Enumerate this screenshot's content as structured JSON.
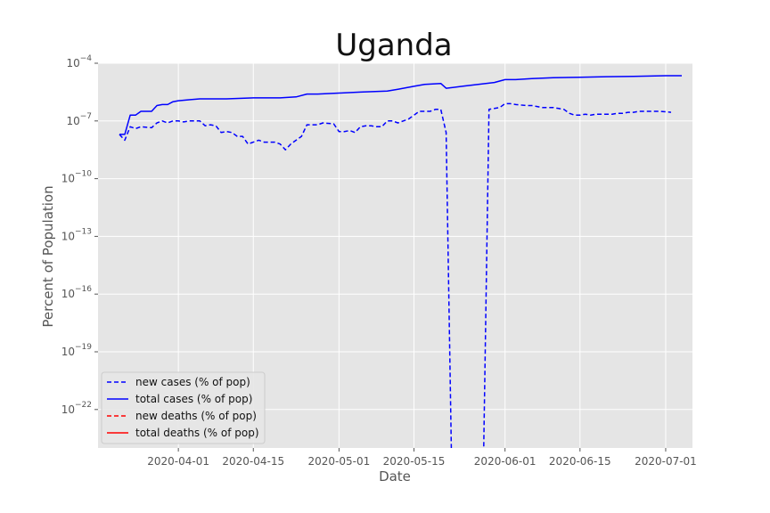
{
  "chart_data": {
    "type": "line",
    "title": "Uganda",
    "xlabel": "Date",
    "ylabel": "Percent of Population",
    "y_scale": "log",
    "ylim_exponents": [
      -24,
      -4
    ],
    "xlim": [
      "2020-03-17",
      "2020-07-06"
    ],
    "grid": true,
    "legend_position": "lower-left",
    "x_ticks": [
      "2020-04-01",
      "2020-04-15",
      "2020-05-01",
      "2020-05-15",
      "2020-06-01",
      "2020-06-15",
      "2020-07-01"
    ],
    "y_ticks": [
      {
        "base": "10",
        "exp": "−4",
        "value": -4
      },
      {
        "base": "10",
        "exp": "−7",
        "value": -7
      },
      {
        "base": "10",
        "exp": "−10",
        "value": -10
      },
      {
        "base": "10",
        "exp": "−13",
        "value": -13
      },
      {
        "base": "10",
        "exp": "−16",
        "value": -16
      },
      {
        "base": "10",
        "exp": "−19",
        "value": -19
      },
      {
        "base": "10",
        "exp": "−22",
        "value": -22
      }
    ],
    "series": [
      {
        "name": "new cases (% of pop)",
        "color": "#0000ff",
        "style": "dashed",
        "points": [
          [
            "2020-03-21",
            -7.7
          ],
          [
            "2020-03-22",
            -8.0
          ],
          [
            "2020-03-23",
            -7.3
          ],
          [
            "2020-03-24",
            -7.4
          ],
          [
            "2020-03-25",
            -7.3
          ],
          [
            "2020-03-27",
            -7.35
          ],
          [
            "2020-03-28",
            -7.1
          ],
          [
            "2020-03-29",
            -7.0
          ],
          [
            "2020-03-30",
            -7.1
          ],
          [
            "2020-03-31",
            -7.0
          ],
          [
            "2020-04-01",
            -7.0
          ],
          [
            "2020-04-02",
            -7.05
          ],
          [
            "2020-04-03",
            -7.0
          ],
          [
            "2020-04-04",
            -7.0
          ],
          [
            "2020-04-05",
            -7.0
          ],
          [
            "2020-04-06",
            -7.25
          ],
          [
            "2020-04-07",
            -7.2
          ],
          [
            "2020-04-08",
            -7.25
          ],
          [
            "2020-04-09",
            -7.6
          ],
          [
            "2020-04-10",
            -7.55
          ],
          [
            "2020-04-11",
            -7.6
          ],
          [
            "2020-04-12",
            -7.8
          ],
          [
            "2020-04-13",
            -7.8
          ],
          [
            "2020-04-14",
            -8.2
          ],
          [
            "2020-04-15",
            -8.1
          ],
          [
            "2020-04-16",
            -8.0
          ],
          [
            "2020-04-17",
            -8.1
          ],
          [
            "2020-04-18",
            -8.1
          ],
          [
            "2020-04-19",
            -8.1
          ],
          [
            "2020-04-20",
            -8.2
          ],
          [
            "2020-04-21",
            -8.5
          ],
          [
            "2020-04-22",
            -8.2
          ],
          [
            "2020-04-23",
            -8.0
          ],
          [
            "2020-04-24",
            -7.8
          ],
          [
            "2020-04-25",
            -7.2
          ],
          [
            "2020-04-27",
            -7.2
          ],
          [
            "2020-04-28",
            -7.1
          ],
          [
            "2020-04-30",
            -7.15
          ],
          [
            "2020-05-01",
            -7.55
          ],
          [
            "2020-05-02",
            -7.55
          ],
          [
            "2020-05-03",
            -7.5
          ],
          [
            "2020-05-04",
            -7.6
          ],
          [
            "2020-05-05",
            -7.3
          ],
          [
            "2020-05-06",
            -7.25
          ],
          [
            "2020-05-07",
            -7.25
          ],
          [
            "2020-05-08",
            -7.3
          ],
          [
            "2020-05-09",
            -7.3
          ],
          [
            "2020-05-10",
            -7.0
          ],
          [
            "2020-05-11",
            -7.0
          ],
          [
            "2020-05-12",
            -7.1
          ],
          [
            "2020-05-13",
            -7.0
          ],
          [
            "2020-05-14",
            -6.9
          ],
          [
            "2020-05-15",
            -6.7
          ],
          [
            "2020-05-16",
            -6.5
          ],
          [
            "2020-05-17",
            -6.5
          ],
          [
            "2020-05-18",
            -6.5
          ],
          [
            "2020-05-19",
            -6.4
          ],
          [
            "2020-05-20",
            -6.4
          ],
          [
            "2020-05-21",
            -7.6
          ],
          [
            "2020-05-22",
            -24.5
          ],
          [
            "2020-05-28",
            -24.5
          ],
          [
            "2020-05-29",
            -6.4
          ],
          [
            "2020-05-30",
            -6.35
          ],
          [
            "2020-05-31",
            -6.3
          ],
          [
            "2020-06-01",
            -6.1
          ],
          [
            "2020-06-02",
            -6.1
          ],
          [
            "2020-06-03",
            -6.15
          ],
          [
            "2020-06-05",
            -6.2
          ],
          [
            "2020-06-06",
            -6.2
          ],
          [
            "2020-06-07",
            -6.25
          ],
          [
            "2020-06-08",
            -6.3
          ],
          [
            "2020-06-09",
            -6.3
          ],
          [
            "2020-06-10",
            -6.3
          ],
          [
            "2020-06-11",
            -6.35
          ],
          [
            "2020-06-12",
            -6.4
          ],
          [
            "2020-06-13",
            -6.6
          ],
          [
            "2020-06-14",
            -6.7
          ],
          [
            "2020-06-15",
            -6.7
          ],
          [
            "2020-06-16",
            -6.65
          ],
          [
            "2020-06-17",
            -6.7
          ],
          [
            "2020-06-18",
            -6.65
          ],
          [
            "2020-06-19",
            -6.65
          ],
          [
            "2020-06-21",
            -6.65
          ],
          [
            "2020-06-22",
            -6.6
          ],
          [
            "2020-06-23",
            -6.6
          ],
          [
            "2020-06-24",
            -6.55
          ],
          [
            "2020-06-25",
            -6.55
          ],
          [
            "2020-06-26",
            -6.5
          ],
          [
            "2020-06-27",
            -6.5
          ],
          [
            "2020-06-28",
            -6.5
          ],
          [
            "2020-06-29",
            -6.5
          ],
          [
            "2020-06-30",
            -6.5
          ],
          [
            "2020-07-02",
            -6.55
          ]
        ]
      },
      {
        "name": "total cases (% of pop)",
        "color": "#0000ff",
        "style": "solid",
        "points": [
          [
            "2020-03-21",
            -7.7
          ],
          [
            "2020-03-22",
            -7.7
          ],
          [
            "2020-03-23",
            -6.7
          ],
          [
            "2020-03-24",
            -6.7
          ],
          [
            "2020-03-25",
            -6.5
          ],
          [
            "2020-03-27",
            -6.5
          ],
          [
            "2020-03-28",
            -6.2
          ],
          [
            "2020-03-29",
            -6.15
          ],
          [
            "2020-03-30",
            -6.15
          ],
          [
            "2020-03-31",
            -6.0
          ],
          [
            "2020-04-01",
            -5.95
          ],
          [
            "2020-04-03",
            -5.9
          ],
          [
            "2020-04-05",
            -5.85
          ],
          [
            "2020-04-10",
            -5.85
          ],
          [
            "2020-04-15",
            -5.8
          ],
          [
            "2020-04-20",
            -5.8
          ],
          [
            "2020-04-23",
            -5.75
          ],
          [
            "2020-04-25",
            -5.6
          ],
          [
            "2020-04-27",
            -5.6
          ],
          [
            "2020-05-01",
            -5.55
          ],
          [
            "2020-05-05",
            -5.5
          ],
          [
            "2020-05-10",
            -5.45
          ],
          [
            "2020-05-12",
            -5.35
          ],
          [
            "2020-05-15",
            -5.2
          ],
          [
            "2020-05-17",
            -5.1
          ],
          [
            "2020-05-20",
            -5.05
          ],
          [
            "2020-05-21",
            -5.3
          ],
          [
            "2020-05-24",
            -5.2
          ],
          [
            "2020-05-27",
            -5.1
          ],
          [
            "2020-05-30",
            -5.0
          ],
          [
            "2020-06-01",
            -4.85
          ],
          [
            "2020-06-03",
            -4.85
          ],
          [
            "2020-06-06",
            -4.8
          ],
          [
            "2020-06-10",
            -4.75
          ],
          [
            "2020-06-15",
            -4.73
          ],
          [
            "2020-06-20",
            -4.7
          ],
          [
            "2020-06-25",
            -4.68
          ],
          [
            "2020-07-01",
            -4.65
          ],
          [
            "2020-07-04",
            -4.65
          ]
        ]
      },
      {
        "name": "new deaths (% of pop)",
        "color": "#ff0000",
        "style": "dashed",
        "points": []
      },
      {
        "name": "total deaths (% of pop)",
        "color": "#ff0000",
        "style": "solid",
        "points": []
      }
    ]
  }
}
